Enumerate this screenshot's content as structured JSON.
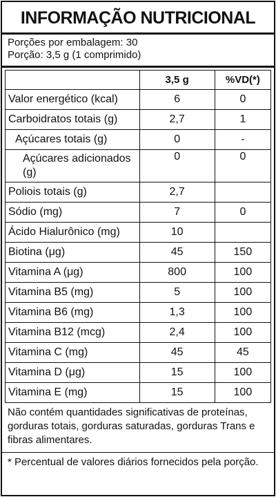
{
  "header": {
    "title": "INFORMAÇÃO NUTRICIONAL",
    "servings_per_package": "Porções por embalagem: 30",
    "serving_size": "Porção: 3,5 g (1 comprimido)"
  },
  "table": {
    "columns": [
      "",
      "3,5 g",
      "%VD(*)"
    ],
    "rows": [
      [
        "Valor energético (kcal)",
        "6",
        "0"
      ],
      [
        "Carboidratos totais (g)",
        "2,7",
        "1"
      ],
      [
        "Açúcares totais (g)",
        "0",
        "-"
      ],
      [
        "Açúcares adicionados (g)",
        "0",
        "0"
      ],
      [
        "Poliois totais (g)",
        "2,7",
        ""
      ],
      [
        "Sódio (mg)",
        "7",
        "0"
      ],
      [
        "Ácido Hialurônico (mg)",
        "10",
        ""
      ],
      [
        "Biotina (μg)",
        "45",
        "150"
      ],
      [
        "Vitamina A (μg)",
        "800",
        "100"
      ],
      [
        "Vitamina B5 (mg)",
        "5",
        "100"
      ],
      [
        "Vitamina B6 (mg)",
        "1,3",
        "100"
      ],
      [
        "Vitamina B12 (mcg)",
        "2,4",
        "100"
      ],
      [
        "Vitamina C (mg)",
        "45",
        "45"
      ],
      [
        "Vitamina D (μg)",
        "15",
        "100"
      ],
      [
        "Vitamina E (mg)",
        "15",
        "100"
      ]
    ]
  },
  "footer": {
    "note": "Não contém quantidades significativas de proteínas, gorduras totais, gorduras saturadas, gorduras Trans e fibras alimentares.",
    "footnote": "* Percentual de valores diários fornecidos pela porção."
  }
}
